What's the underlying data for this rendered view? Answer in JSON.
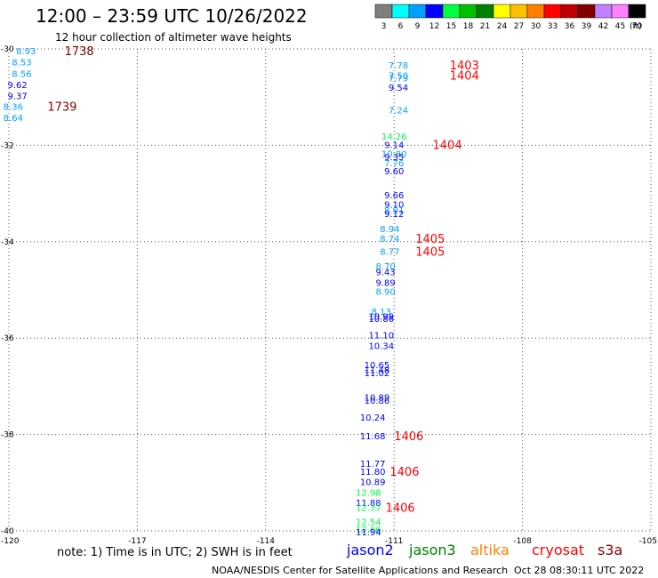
{
  "title": "12:00 – 23:59 UTC 10/26/2022",
  "subtitle": "12 hour collection of altimeter wave heights",
  "legend": {
    "unit_label": "(ft)",
    "bins": [
      {
        "label": "3",
        "color": "#7f7f7f"
      },
      {
        "label": "6",
        "color": "#00ffff"
      },
      {
        "label": "9",
        "color": "#00a0ff"
      },
      {
        "label": "12",
        "color": "#0000ff"
      },
      {
        "label": "15",
        "color": "#00ff40"
      },
      {
        "label": "18",
        "color": "#00c000"
      },
      {
        "label": "21",
        "color": "#008000"
      },
      {
        "label": "24",
        "color": "#ffff00"
      },
      {
        "label": "27",
        "color": "#ffc000"
      },
      {
        "label": "30",
        "color": "#ff8000"
      },
      {
        "label": "33",
        "color": "#ff0000"
      },
      {
        "label": "36",
        "color": "#c00000"
      },
      {
        "label": "39",
        "color": "#800000"
      },
      {
        "label": "42",
        "color": "#c080ff"
      },
      {
        "label": "45",
        "color": "#ff80ff"
      },
      {
        "label": "70",
        "color": "#000000"
      }
    ]
  },
  "map": {
    "lon_range": [
      -120,
      -105
    ],
    "lat_range": [
      -40,
      -30
    ],
    "lon_ticks": [
      "-120",
      "-117",
      "-114",
      "-111",
      "-108",
      "-105"
    ],
    "lon_tick_values": [
      -120,
      -117,
      -114,
      -111,
      -108,
      -105
    ],
    "lat_ticks": [
      "-30",
      "-32",
      "-34",
      "-36",
      "-38",
      "-40"
    ],
    "lat_tick_values": [
      -30,
      -32,
      -34,
      -36,
      -38,
      -40
    ],
    "grid": "dotted"
  },
  "chart_data": {
    "type": "scatter",
    "xlabel": "",
    "ylabel": "",
    "xlim": [
      -120,
      -105
    ],
    "ylim": [
      -40,
      -30
    ],
    "grid": true,
    "points": [
      {
        "lon": -119.6,
        "lat": -30.04,
        "text": "8.93",
        "color": "#00a0ff"
      },
      {
        "lon": -119.7,
        "lat": -30.27,
        "text": "8.53",
        "color": "#00a0ff"
      },
      {
        "lon": -119.7,
        "lat": -30.51,
        "text": "8.56",
        "color": "#00a0ff"
      },
      {
        "lon": -119.8,
        "lat": -30.74,
        "text": "9.62",
        "color": "#0000ff"
      },
      {
        "lon": -119.8,
        "lat": -30.97,
        "text": "9.37",
        "color": "#0000ff"
      },
      {
        "lon": -119.9,
        "lat": -31.19,
        "text": "8.36",
        "color": "#00a0ff"
      },
      {
        "lon": -119.9,
        "lat": -31.42,
        "text": "8.64",
        "color": "#00a0ff"
      },
      {
        "lon": -110.9,
        "lat": -30.33,
        "text": "7.78",
        "color": "#00a0ff"
      },
      {
        "lon": -110.9,
        "lat": -30.54,
        "text": "7.50",
        "color": "#00a0ff"
      },
      {
        "lon": -110.9,
        "lat": -30.6,
        "text": "7.79",
        "color": "#00a0ff"
      },
      {
        "lon": -110.9,
        "lat": -30.79,
        "text": "9.54",
        "color": "#0000ff"
      },
      {
        "lon": -110.9,
        "lat": -31.26,
        "text": "7.24",
        "color": "#00a0ff"
      },
      {
        "lon": -111.0,
        "lat": -31.81,
        "text": "14.26",
        "color": "#00ff40"
      },
      {
        "lon": -111.0,
        "lat": -31.98,
        "text": "9.14",
        "color": "#0000ff"
      },
      {
        "lon": -111.0,
        "lat": -32.17,
        "text": "10.80",
        "color": "#00a0ff"
      },
      {
        "lon": -111.0,
        "lat": -32.23,
        "text": "9.35",
        "color": "#0000ff"
      },
      {
        "lon": -111.0,
        "lat": -32.36,
        "text": "7.76",
        "color": "#00a0ff"
      },
      {
        "lon": -111.0,
        "lat": -32.53,
        "text": "9.60",
        "color": "#0000ff"
      },
      {
        "lon": -111.0,
        "lat": -33.03,
        "text": "9.66",
        "color": "#0000ff"
      },
      {
        "lon": -111.0,
        "lat": -33.22,
        "text": "9.10",
        "color": "#0000ff"
      },
      {
        "lon": -111.0,
        "lat": -33.34,
        "text": "8.91",
        "color": "#00a0ff"
      },
      {
        "lon": -111.0,
        "lat": -33.41,
        "text": "9.12",
        "color": "#0000ff"
      },
      {
        "lon": -111.1,
        "lat": -33.73,
        "text": "8.94",
        "color": "#00a0ff"
      },
      {
        "lon": -111.1,
        "lat": -33.93,
        "text": "8.74",
        "color": "#00a0ff"
      },
      {
        "lon": -111.1,
        "lat": -34.2,
        "text": "8.77",
        "color": "#00a0ff"
      },
      {
        "lon": -111.2,
        "lat": -34.5,
        "text": "8.70",
        "color": "#00a0ff"
      },
      {
        "lon": -111.2,
        "lat": -34.62,
        "text": "9.43",
        "color": "#0000ff"
      },
      {
        "lon": -111.2,
        "lat": -34.84,
        "text": "9.89",
        "color": "#0000ff"
      },
      {
        "lon": -111.2,
        "lat": -35.03,
        "text": "8.90",
        "color": "#00a0ff"
      },
      {
        "lon": -111.3,
        "lat": -35.44,
        "text": "8.13",
        "color": "#00a0ff"
      },
      {
        "lon": -111.3,
        "lat": -35.54,
        "text": "10.99",
        "color": "#0000ff"
      },
      {
        "lon": -111.3,
        "lat": -35.59,
        "text": "10.86",
        "color": "#0000ff"
      },
      {
        "lon": -111.3,
        "lat": -35.93,
        "text": "11.10",
        "color": "#0000ff"
      },
      {
        "lon": -111.3,
        "lat": -36.15,
        "text": "10.34",
        "color": "#0000ff"
      },
      {
        "lon": -111.4,
        "lat": -36.55,
        "text": "10.65",
        "color": "#0000ff"
      },
      {
        "lon": -111.4,
        "lat": -36.65,
        "text": "11.48",
        "color": "#0000ff"
      },
      {
        "lon": -111.4,
        "lat": -36.72,
        "text": "11.02",
        "color": "#0000ff"
      },
      {
        "lon": -111.4,
        "lat": -37.22,
        "text": "10.89",
        "color": "#0000ff"
      },
      {
        "lon": -111.4,
        "lat": -37.29,
        "text": "10.86",
        "color": "#0000ff"
      },
      {
        "lon": -111.5,
        "lat": -37.64,
        "text": "10.24",
        "color": "#0000ff"
      },
      {
        "lon": -111.5,
        "lat": -38.03,
        "text": "11.68",
        "color": "#0000ff"
      },
      {
        "lon": -111.5,
        "lat": -38.6,
        "text": "11.77",
        "color": "#0000ff"
      },
      {
        "lon": -111.5,
        "lat": -38.76,
        "text": "11.80",
        "color": "#0000ff"
      },
      {
        "lon": -111.5,
        "lat": -38.98,
        "text": "10.89",
        "color": "#0000ff"
      },
      {
        "lon": -111.6,
        "lat": -39.2,
        "text": "12.98",
        "color": "#00ff40"
      },
      {
        "lon": -111.6,
        "lat": -39.41,
        "text": "11.88",
        "color": "#0000ff"
      },
      {
        "lon": -111.6,
        "lat": -39.51,
        "text": "12.37",
        "color": "#00ff40"
      },
      {
        "lon": -111.6,
        "lat": -39.81,
        "text": "12.54",
        "color": "#00ff40"
      },
      {
        "lon": -111.6,
        "lat": -39.96,
        "text": "12.66",
        "color": "#00ff40"
      },
      {
        "lon": -111.6,
        "lat": -40.02,
        "text": "11.94",
        "color": "#0000ff"
      }
    ],
    "time_labels": [
      {
        "lon": -118.7,
        "lat": -30.04,
        "text": "1738",
        "color": "#800000"
      },
      {
        "lon": -119.1,
        "lat": -31.19,
        "text": "1739",
        "color": "#800000"
      },
      {
        "lon": -109.7,
        "lat": -30.33,
        "text": "1403",
        "color": "#ff0000"
      },
      {
        "lon": -109.7,
        "lat": -30.54,
        "text": "1404",
        "color": "#ff0000"
      },
      {
        "lon": -110.1,
        "lat": -31.98,
        "text": "1404",
        "color": "#ff0000"
      },
      {
        "lon": -110.5,
        "lat": -33.93,
        "text": "1405",
        "color": "#ff0000"
      },
      {
        "lon": -110.5,
        "lat": -34.2,
        "text": "1405",
        "color": "#ff0000"
      },
      {
        "lon": -111.0,
        "lat": -38.03,
        "text": "1406",
        "color": "#ff0000"
      },
      {
        "lon": -111.1,
        "lat": -38.76,
        "text": "1406",
        "color": "#ff0000"
      },
      {
        "lon": -111.2,
        "lat": -39.51,
        "text": "1406",
        "color": "#ff0000"
      }
    ]
  },
  "footer": {
    "note": "note: 1) Time is in UTC; 2) SWH is in feet",
    "satellites": [
      {
        "name": "jason2",
        "color": "#0000ff"
      },
      {
        "name": "jason3",
        "color": "#008000"
      },
      {
        "name": "altika",
        "color": "#ff8000"
      },
      {
        "name": "cryosat",
        "color": "#ff0000"
      },
      {
        "name": "s3a",
        "color": "#800000"
      }
    ],
    "credit": "NOAA/NESDIS Center for Satellite Applications and Research",
    "timestamp": "Oct 28 08:30:11 UTC 2022"
  }
}
